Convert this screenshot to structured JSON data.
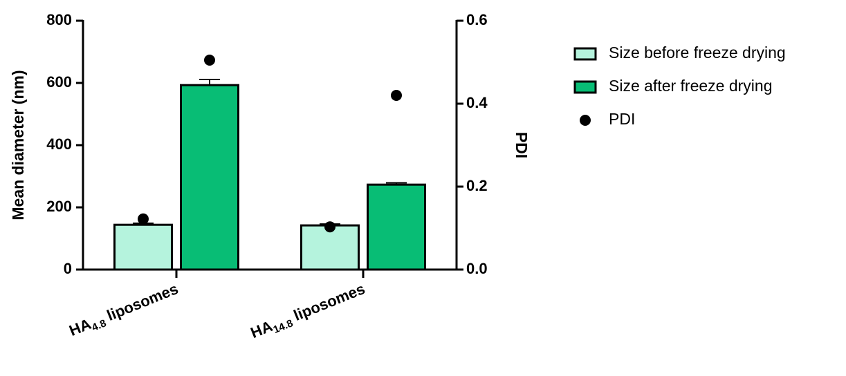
{
  "chart_data": {
    "type": "bar",
    "categories": [
      "HA4.8 liposomes",
      "HA14.8 liposomes"
    ],
    "y_label": "Mean diameter (nm)",
    "y2_label": "PDI",
    "ylim": [
      0,
      800
    ],
    "yticks": [
      0,
      200,
      400,
      600,
      800
    ],
    "y2lim": [
      0,
      0.6
    ],
    "y2ticks": [
      {
        "value": 0,
        "label": "0.0"
      },
      {
        "value": 0.2,
        "label": "0.2"
      },
      {
        "value": 0.4,
        "label": "0.4"
      },
      {
        "value": 0.6,
        "label": "0.6"
      }
    ],
    "series": [
      {
        "name": "Size before freeze drying",
        "color": "#b5f3dd",
        "values": [
          144,
          142
        ],
        "errors": [
          5,
          4
        ]
      },
      {
        "name": "Size after freeze drying",
        "color": "#08bd75",
        "values": [
          593,
          273
        ],
        "errors": [
          18,
          6
        ]
      },
      {
        "name": "PDI",
        "type": "scatter",
        "axis": "y2",
        "color": "#000000",
        "values": [
          [
            0.122,
            0.505
          ],
          [
            0.103,
            0.42
          ]
        ]
      }
    ]
  }
}
